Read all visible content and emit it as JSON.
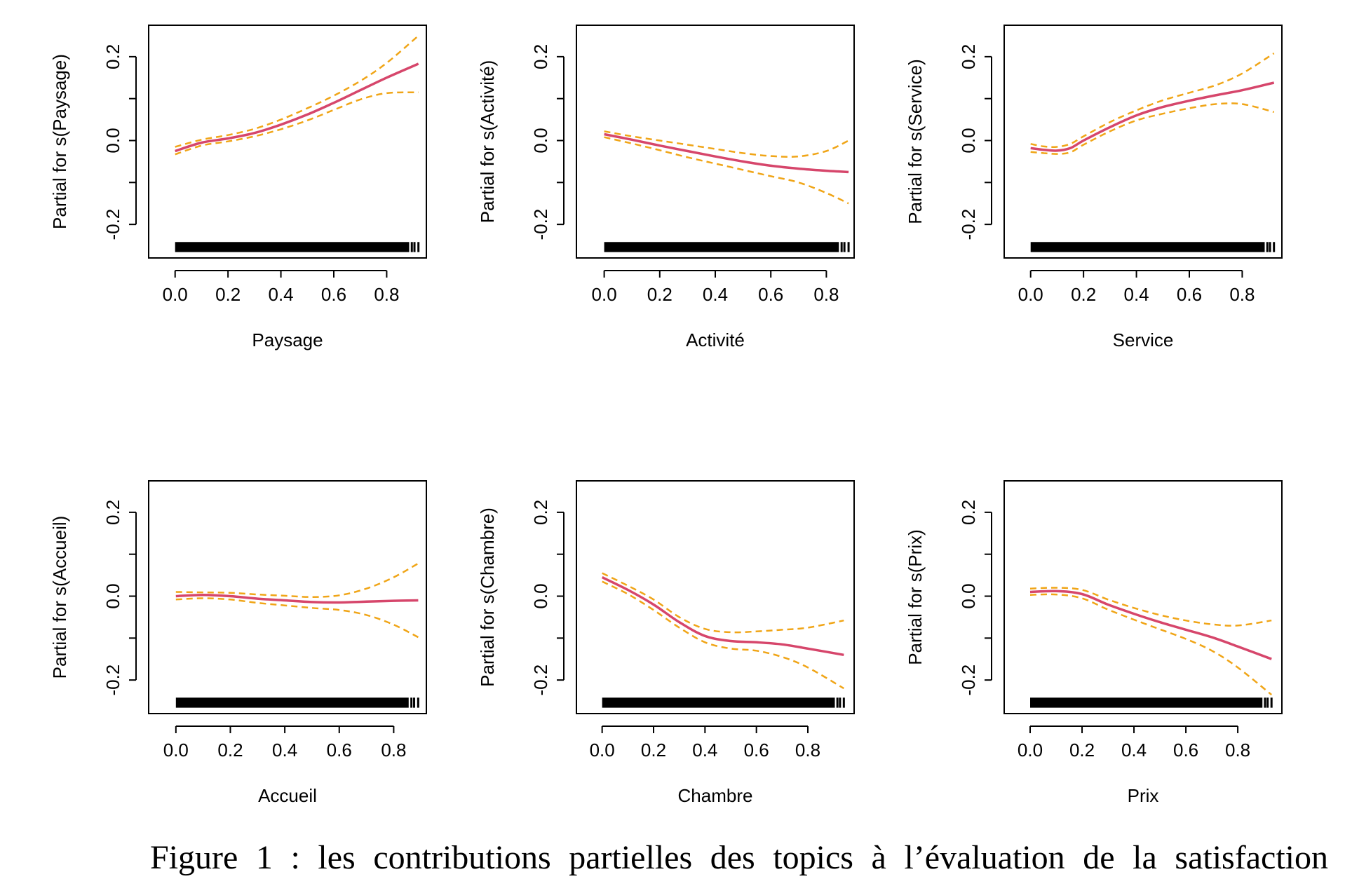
{
  "caption": "Figure 1 : les contributions partielles des topics à l’évaluation de la satisfaction",
  "colors": {
    "fit": "#d6466b",
    "ci": "#f0a517",
    "rug": "#000000"
  },
  "chart_data": [
    {
      "type": "line",
      "xlabel": "Paysage",
      "ylabel": "Partial for s(Paysage)",
      "x_ticks": [
        "0.0",
        "0.2",
        "0.4",
        "0.6",
        "0.8"
      ],
      "y_ticks": [
        "-0.2",
        "0.0",
        "0.2"
      ],
      "xlim": [
        -0.1,
        0.95
      ],
      "ylim": [
        -0.28,
        0.275
      ],
      "grid": false,
      "series": [
        {
          "role": "fit",
          "x": [
            0,
            0.1,
            0.2,
            0.3,
            0.4,
            0.5,
            0.6,
            0.7,
            0.8,
            0.92
          ],
          "y": [
            -0.025,
            -0.005,
            0.005,
            0.018,
            0.038,
            0.062,
            0.09,
            0.12,
            0.15,
            0.183
          ]
        },
        {
          "role": "upper",
          "x": [
            0,
            0.1,
            0.2,
            0.3,
            0.4,
            0.5,
            0.6,
            0.7,
            0.8,
            0.92
          ],
          "y": [
            -0.015,
            0.002,
            0.013,
            0.028,
            0.05,
            0.077,
            0.107,
            0.142,
            0.185,
            0.25
          ]
        },
        {
          "role": "lower",
          "x": [
            0,
            0.1,
            0.2,
            0.3,
            0.4,
            0.5,
            0.6,
            0.7,
            0.8,
            0.92
          ],
          "y": [
            -0.033,
            -0.012,
            -0.002,
            0.01,
            0.027,
            0.048,
            0.073,
            0.098,
            0.113,
            0.115
          ]
        }
      ],
      "rug_end": 0.92
    },
    {
      "type": "line",
      "xlabel": "Activité",
      "ylabel": "Partial for s(Activité)",
      "x_ticks": [
        "0.0",
        "0.2",
        "0.4",
        "0.6",
        "0.8"
      ],
      "y_ticks": [
        "-0.2",
        "0.0",
        "0.2"
      ],
      "xlim": [
        -0.1,
        0.9
      ],
      "ylim": [
        -0.28,
        0.275
      ],
      "grid": false,
      "series": [
        {
          "role": "fit",
          "x": [
            0,
            0.1,
            0.2,
            0.3,
            0.4,
            0.5,
            0.6,
            0.7,
            0.8,
            0.88
          ],
          "y": [
            0.015,
            0.002,
            -0.012,
            -0.025,
            -0.038,
            -0.05,
            -0.06,
            -0.067,
            -0.072,
            -0.075
          ]
        },
        {
          "role": "upper",
          "x": [
            0,
            0.1,
            0.2,
            0.3,
            0.4,
            0.5,
            0.6,
            0.7,
            0.8,
            0.88
          ],
          "y": [
            0.022,
            0.01,
            0.0,
            -0.01,
            -0.02,
            -0.03,
            -0.037,
            -0.038,
            -0.025,
            0.0
          ]
        },
        {
          "role": "lower",
          "x": [
            0,
            0.1,
            0.2,
            0.3,
            0.4,
            0.5,
            0.6,
            0.7,
            0.8,
            0.88
          ],
          "y": [
            0.008,
            -0.007,
            -0.023,
            -0.04,
            -0.055,
            -0.07,
            -0.085,
            -0.1,
            -0.125,
            -0.15
          ]
        }
      ],
      "rug_end": 0.88
    },
    {
      "type": "line",
      "xlabel": "Service",
      "ylabel": "Partial for s(Service)",
      "x_ticks": [
        "0.0",
        "0.2",
        "0.4",
        "0.6",
        "0.8"
      ],
      "y_ticks": [
        "-0.2",
        "0.0",
        "0.2"
      ],
      "xlim": [
        -0.1,
        0.95
      ],
      "ylim": [
        -0.28,
        0.275
      ],
      "grid": false,
      "series": [
        {
          "role": "fit",
          "x": [
            0,
            0.05,
            0.1,
            0.15,
            0.2,
            0.3,
            0.4,
            0.5,
            0.6,
            0.7,
            0.8,
            0.92
          ],
          "y": [
            -0.018,
            -0.022,
            -0.024,
            -0.018,
            0.0,
            0.032,
            0.06,
            0.08,
            0.095,
            0.108,
            0.12,
            0.138
          ]
        },
        {
          "role": "upper",
          "x": [
            0,
            0.05,
            0.1,
            0.15,
            0.2,
            0.3,
            0.4,
            0.5,
            0.6,
            0.7,
            0.8,
            0.92
          ],
          "y": [
            -0.008,
            -0.014,
            -0.015,
            -0.008,
            0.01,
            0.044,
            0.072,
            0.096,
            0.114,
            0.132,
            0.16,
            0.208
          ]
        },
        {
          "role": "lower",
          "x": [
            0,
            0.05,
            0.1,
            0.15,
            0.2,
            0.3,
            0.4,
            0.5,
            0.6,
            0.7,
            0.8,
            0.92
          ],
          "y": [
            -0.027,
            -0.03,
            -0.032,
            -0.028,
            -0.01,
            0.022,
            0.048,
            0.064,
            0.077,
            0.087,
            0.087,
            0.068
          ]
        }
      ],
      "rug_end": 0.92
    },
    {
      "type": "line",
      "xlabel": "Accueil",
      "ylabel": "Partial for s(Accueil)",
      "x_ticks": [
        "0.0",
        "0.2",
        "0.4",
        "0.6",
        "0.8"
      ],
      "y_ticks": [
        "-0.2",
        "0.0",
        "0.2"
      ],
      "xlim": [
        -0.1,
        0.92
      ],
      "ylim": [
        -0.28,
        0.275
      ],
      "grid": false,
      "series": [
        {
          "role": "fit",
          "x": [
            0,
            0.1,
            0.2,
            0.3,
            0.4,
            0.5,
            0.6,
            0.7,
            0.8,
            0.89
          ],
          "y": [
            0.0,
            0.003,
            0.0,
            -0.006,
            -0.01,
            -0.014,
            -0.015,
            -0.013,
            -0.011,
            -0.01
          ]
        },
        {
          "role": "upper",
          "x": [
            0,
            0.1,
            0.2,
            0.3,
            0.4,
            0.5,
            0.6,
            0.7,
            0.8,
            0.89
          ],
          "y": [
            0.01,
            0.009,
            0.008,
            0.004,
            0.001,
            -0.002,
            0.002,
            0.018,
            0.045,
            0.078
          ]
        },
        {
          "role": "lower",
          "x": [
            0,
            0.1,
            0.2,
            0.3,
            0.4,
            0.5,
            0.6,
            0.7,
            0.8,
            0.89
          ],
          "y": [
            -0.008,
            -0.005,
            -0.008,
            -0.016,
            -0.022,
            -0.028,
            -0.033,
            -0.045,
            -0.068,
            -0.098
          ]
        }
      ],
      "rug_end": 0.89
    },
    {
      "type": "line",
      "xlabel": "Chambre",
      "ylabel": "Partial for s(Chambre)",
      "x_ticks": [
        "0.0",
        "0.2",
        "0.4",
        "0.6",
        "0.8"
      ],
      "y_ticks": [
        "-0.2",
        "0.0",
        "0.2"
      ],
      "xlim": [
        -0.1,
        0.98
      ],
      "ylim": [
        -0.28,
        0.275
      ],
      "grid": false,
      "series": [
        {
          "role": "fit",
          "x": [
            0,
            0.1,
            0.2,
            0.3,
            0.4,
            0.5,
            0.6,
            0.7,
            0.8,
            0.94
          ],
          "y": [
            0.045,
            0.015,
            -0.02,
            -0.062,
            -0.095,
            -0.107,
            -0.11,
            -0.115,
            -0.125,
            -0.14
          ]
        },
        {
          "role": "upper",
          "x": [
            0,
            0.1,
            0.2,
            0.3,
            0.4,
            0.5,
            0.6,
            0.7,
            0.8,
            0.94
          ],
          "y": [
            0.055,
            0.025,
            -0.008,
            -0.05,
            -0.078,
            -0.086,
            -0.084,
            -0.08,
            -0.075,
            -0.058
          ]
        },
        {
          "role": "lower",
          "x": [
            0,
            0.1,
            0.2,
            0.3,
            0.4,
            0.5,
            0.6,
            0.7,
            0.8,
            0.94
          ],
          "y": [
            0.035,
            0.005,
            -0.033,
            -0.075,
            -0.11,
            -0.125,
            -0.13,
            -0.145,
            -0.17,
            -0.22
          ]
        }
      ],
      "rug_end": 0.94
    },
    {
      "type": "line",
      "xlabel": "Prix",
      "ylabel": "Partial for s(Prix)",
      "x_ticks": [
        "0.0",
        "0.2",
        "0.4",
        "0.6",
        "0.8"
      ],
      "y_ticks": [
        "-0.2",
        "0.0",
        "0.2"
      ],
      "xlim": [
        -0.1,
        0.97
      ],
      "ylim": [
        -0.28,
        0.275
      ],
      "grid": false,
      "series": [
        {
          "role": "fit",
          "x": [
            0,
            0.1,
            0.2,
            0.3,
            0.4,
            0.5,
            0.6,
            0.7,
            0.8,
            0.93
          ],
          "y": [
            0.01,
            0.012,
            0.005,
            -0.02,
            -0.042,
            -0.062,
            -0.08,
            -0.098,
            -0.12,
            -0.15
          ]
        },
        {
          "role": "upper",
          "x": [
            0,
            0.1,
            0.2,
            0.3,
            0.4,
            0.5,
            0.6,
            0.7,
            0.8,
            0.93
          ],
          "y": [
            0.018,
            0.02,
            0.015,
            -0.008,
            -0.028,
            -0.045,
            -0.058,
            -0.067,
            -0.07,
            -0.058
          ]
        },
        {
          "role": "lower",
          "x": [
            0,
            0.1,
            0.2,
            0.3,
            0.4,
            0.5,
            0.6,
            0.7,
            0.8,
            0.93
          ],
          "y": [
            0.003,
            0.004,
            -0.005,
            -0.032,
            -0.056,
            -0.079,
            -0.102,
            -0.13,
            -0.17,
            -0.235
          ]
        }
      ],
      "rug_end": 0.93
    }
  ]
}
